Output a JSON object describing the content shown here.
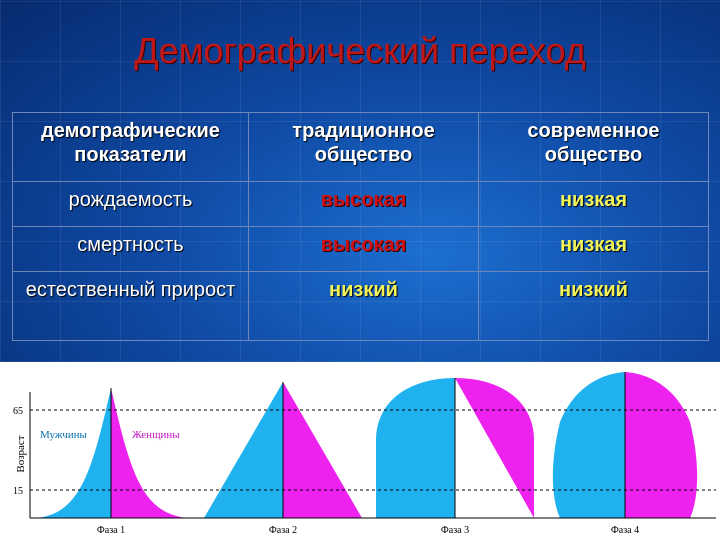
{
  "title": "Демографический переход",
  "table": {
    "headers": [
      "демографические показатели",
      "традиционное общество",
      "современное общество"
    ],
    "rows": [
      {
        "indicator": "рождаемость",
        "traditional": "высокая",
        "modern": "низкая"
      },
      {
        "indicator": "смертность",
        "traditional": "высокая",
        "modern": "низкая"
      },
      {
        "indicator": "естественный прирост",
        "traditional": "низкий",
        "modern": "низкий"
      }
    ]
  },
  "diagram": {
    "axis_label": "Возраст",
    "tick_65": "65",
    "tick_15": "15",
    "male_label": "Мужчины",
    "female_label": "Женщины",
    "phases": [
      "Фаза 1",
      "Фаза 2",
      "Фаза 3",
      "Фаза 4"
    ]
  },
  "colors": {
    "male": "#1fb2ef",
    "female": "#ee22ee",
    "title": "#c01818",
    "high": "#d01010",
    "low": "#f3f35a"
  }
}
